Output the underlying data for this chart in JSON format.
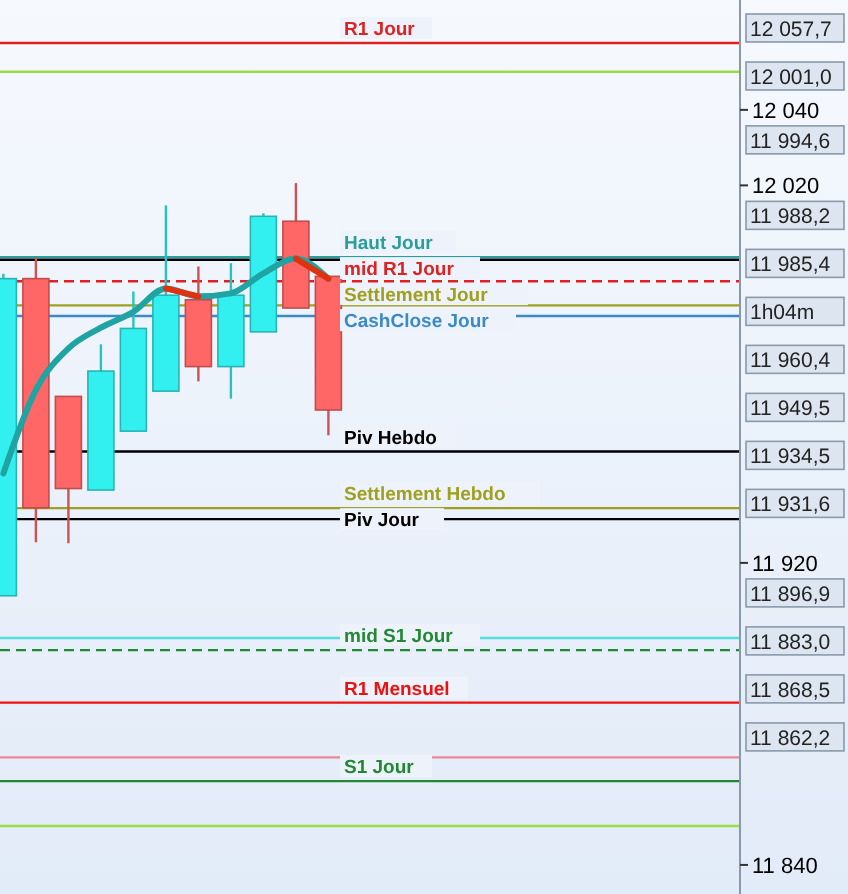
{
  "chart_data": {
    "type": "candlestick",
    "categories": [
      null,
      null,
      null,
      null,
      null,
      null,
      null,
      null,
      null,
      null,
      null,
      null,
      null,
      null,
      null,
      null,
      null,
      null,
      null,
      null,
      null,
      null,
      null
    ],
    "ohlc": [
      [
        11911.3,
        11996.6,
        11911.3,
        11995.3
      ],
      [
        11995.3,
        12000.8,
        11925.5,
        11934.6
      ],
      [
        11964.1,
        11964.1,
        11925.2,
        11939.7
      ],
      [
        11939.3,
        11977.9,
        11939.3,
        11970.8
      ],
      [
        11954.9,
        11991.9,
        11954.9,
        11982.1
      ],
      [
        11965.5,
        12014.7,
        11965.5,
        11990.9
      ],
      [
        11989.7,
        11998.5,
        11968.1,
        11972.0
      ],
      [
        11972.0,
        11999.4,
        11963.5,
        11990.9
      ],
      [
        11981.2,
        12012.6,
        11981.2,
        12011.8
      ],
      [
        12010.5,
        12020.6,
        11987.5,
        11987.5
      ],
      [
        11995.9,
        11995.9,
        11953.8,
        11960.5
      ],
      null,
      null,
      null,
      null,
      null,
      null,
      null,
      null,
      null,
      null,
      null,
      null
    ],
    "colors": [
      "#33f0f0",
      "#ff6666",
      "#ff6666",
      "#33f0f0",
      "#33f0f0",
      "#33f0f0",
      "#ff6666",
      "#33f0f0",
      "#33f0f0",
      "#ff6666",
      "#ff6666",
      null,
      null,
      null,
      null,
      null,
      null,
      null,
      null,
      null,
      null,
      null,
      null
    ],
    "series": [
      {
        "type": "line",
        "color": "#1fa3a3",
        "values": [
          11943.7,
          11965.8,
          11976.8,
          11982.3,
          11986.5,
          11992.7,
          11990.6,
          11991.4,
          11996.7,
          12000.6,
          11995.3,
          null,
          null,
          null,
          null,
          null,
          null,
          null,
          null,
          null,
          null,
          null,
          null
        ]
      },
      {
        "type": "line",
        "color": "#dd3311",
        "values": [
          null,
          null,
          null,
          null,
          null,
          11992.7,
          11990.6,
          null,
          null,
          12000.6,
          11995.3,
          null,
          null,
          null,
          null,
          null,
          null,
          null,
          null,
          null,
          null,
          null,
          null
        ]
      }
    ],
    "ylim": [
      11832.3,
      12069.1
    ],
    "yticks": [
      {
        "value": 12040,
        "label": "12 040"
      },
      {
        "value": 12020,
        "label": "12 020"
      },
      {
        "value": 11920,
        "label": "11 920"
      },
      {
        "value": 11840,
        "label": "11 840"
      }
    ],
    "ref_lines": [
      {
        "axis": "y",
        "value": 12057.7,
        "label": "R1 Jour",
        "color": "#dd2222"
      },
      {
        "axis": "y",
        "value": 12050.1,
        "color": "#99dd44"
      },
      {
        "axis": "y",
        "value": 12001.0,
        "label": "Haut Jour",
        "color": "#2a9d9d"
      },
      {
        "axis": "y",
        "value": 12000.3,
        "color": "#000000"
      },
      {
        "axis": "y",
        "value": 11994.6,
        "label": "mid R1 Jour",
        "color": "#dd2222",
        "line_style": "dashed"
      },
      {
        "axis": "y",
        "value": 11988.2,
        "label": "Settlement Jour",
        "color": "#a0a020"
      },
      {
        "axis": "y",
        "value": 11985.4,
        "label": "CashClose Jour",
        "color": "#3a8ac8"
      },
      {
        "axis": "y",
        "value": 11949.5,
        "label": "Piv Hebdo",
        "color": "#000000"
      },
      {
        "axis": "y",
        "value": 11934.5,
        "label": "Settlement Hebdo",
        "color": "#a0a020"
      },
      {
        "axis": "y",
        "value": 11931.6,
        "label": "Piv Jour",
        "color": "#000000"
      },
      {
        "axis": "y",
        "value": 11900.1,
        "color": "#55dddd"
      },
      {
        "axis": "y",
        "value": 11896.9,
        "label": "mid S1 Jour",
        "color": "#228833",
        "line_style": "dashed"
      },
      {
        "axis": "y",
        "value": 11883.0,
        "label": "R1 Mensuel",
        "color": "#ee1111"
      },
      {
        "axis": "y",
        "value": 11868.5,
        "color": "#ee8899"
      },
      {
        "axis": "y",
        "value": 11862.2,
        "label": "S1 Jour",
        "color": "#228833"
      },
      {
        "axis": "y",
        "value": 11850.3,
        "color": "#99dd44"
      }
    ],
    "annotations": [
      "12 057,7",
      "12 001,0",
      "11 994,6",
      "11 988,2",
      "11 985,4",
      "1h04m",
      "11 960,4",
      "11 949,5",
      "11 934,5",
      "11 931,6",
      "11 896,9",
      "11 883,0",
      "11 868,5",
      "11 862,2"
    ],
    "grid": false
  }
}
